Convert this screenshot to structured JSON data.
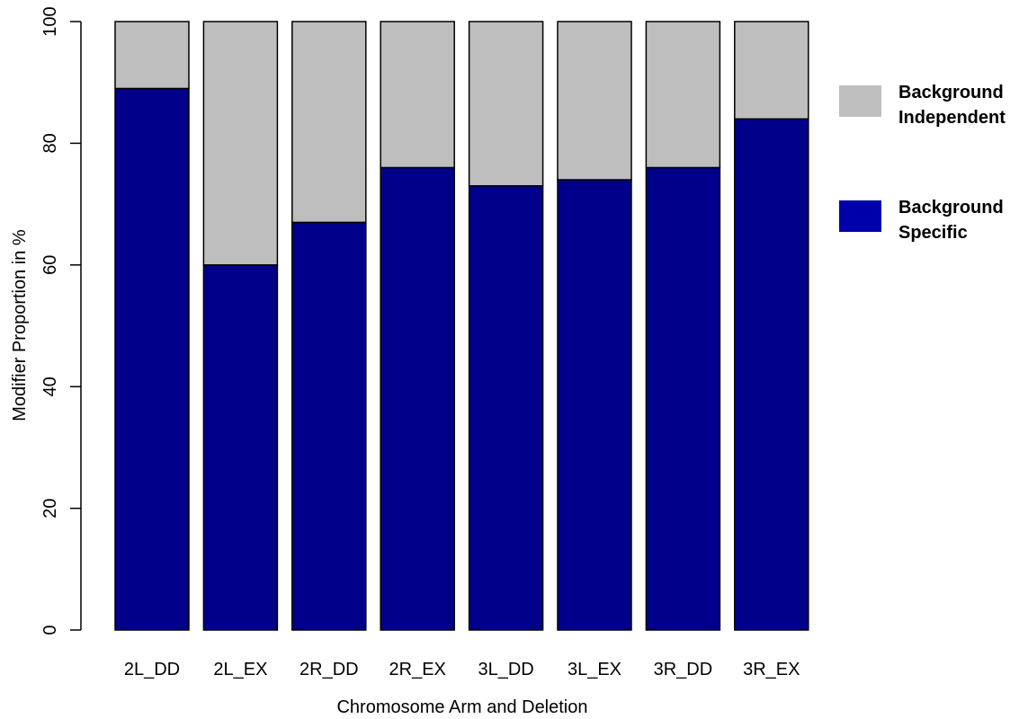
{
  "chart_data": {
    "type": "bar",
    "stacked": true,
    "categories": [
      "2L_DD",
      "2L_EX",
      "2R_DD",
      "2R_EX",
      "3L_DD",
      "3L_EX",
      "3R_DD",
      "3R_EX"
    ],
    "series": [
      {
        "name": "Background Specific",
        "legend_lines": [
          "Background",
          "Specific"
        ],
        "color": "#00008B",
        "legend_color": "#0000AA",
        "values": [
          89,
          60,
          67,
          76,
          73,
          74,
          76,
          84
        ]
      },
      {
        "name": "Background Independent",
        "legend_lines": [
          "Background",
          "Independent"
        ],
        "color": "#BEBEBE",
        "legend_color": "#BEBEBE",
        "values": [
          11,
          40,
          33,
          24,
          27,
          26,
          24,
          16
        ]
      }
    ],
    "xlabel": "Chromosome Arm and Deletion",
    "ylabel": "Modifier Proportion in %",
    "ylim": [
      0,
      100
    ],
    "yticks": [
      0,
      20,
      40,
      60,
      80,
      100
    ],
    "grid": false,
    "legend_position": "right"
  }
}
